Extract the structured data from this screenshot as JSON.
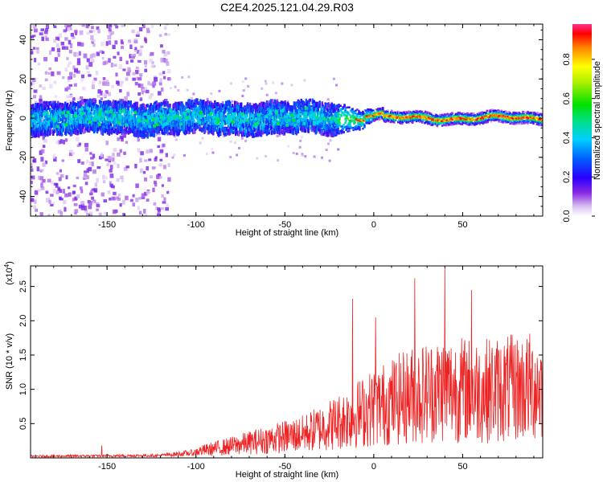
{
  "figure": {
    "title": "C2E4.2025.121.04.29.R03"
  },
  "chart_data": [
    {
      "type": "heatmap",
      "xlabel": "Height of straight line (km)",
      "ylabel": "Frequency (Hz)",
      "xlim": [
        -193,
        95
      ],
      "ylim": [
        -50,
        48
      ],
      "xticks": [
        -150,
        -100,
        -50,
        0,
        50
      ],
      "yticks": [
        -40,
        -20,
        0,
        20,
        40
      ],
      "colorbar": {
        "label": "Normalized spectral amplitude",
        "range": [
          0,
          0.98
        ],
        "ticks": [
          0.0,
          0.2,
          0.4,
          0.6,
          0.8
        ]
      },
      "description_of_band": {
        "center_frequency_hz": 0,
        "band_halfwidth_hz_left": 8,
        "band_halfwidth_hz_right": 3,
        "scatter_region_x": [
          -193,
          -115
        ]
      }
    },
    {
      "type": "line",
      "xlabel": "Height of straight line (km)",
      "ylabel": "SNR (10 * v/v)",
      "y_multiplier_label": "(x10",
      "y_multiplier_exponent": "4",
      "xlim": [
        -193,
        95
      ],
      "ylim": [
        0,
        2.8
      ],
      "xticks": [
        -150,
        -100,
        -50,
        0,
        50
      ],
      "yticks": [
        0.5,
        1.0,
        1.5,
        2.0,
        2.5
      ],
      "series": [
        {
          "color": "#ee2222",
          "envelope": [
            {
              "x": -193,
              "y": 0.04
            },
            {
              "x": -150,
              "y": 0.05
            },
            {
              "x": -120,
              "y": 0.06
            },
            {
              "x": -100,
              "y": 0.13
            },
            {
              "x": -80,
              "y": 0.25
            },
            {
              "x": -60,
              "y": 0.38
            },
            {
              "x": -40,
              "y": 0.5
            },
            {
              "x": -20,
              "y": 0.75
            },
            {
              "x": 0,
              "y": 1.05
            },
            {
              "x": 20,
              "y": 1.3
            },
            {
              "x": 40,
              "y": 1.45
            },
            {
              "x": 60,
              "y": 1.4
            },
            {
              "x": 80,
              "y": 1.45
            },
            {
              "x": 95,
              "y": 1.5
            }
          ],
          "peaks": [
            {
              "x": -153,
              "y": 0.18
            },
            {
              "x": -12,
              "y": 2.32
            },
            {
              "x": 1,
              "y": 2.05
            },
            {
              "x": 23,
              "y": 2.62
            },
            {
              "x": 40,
              "y": 2.78
            },
            {
              "x": 55,
              "y": 2.45
            }
          ]
        }
      ]
    }
  ]
}
